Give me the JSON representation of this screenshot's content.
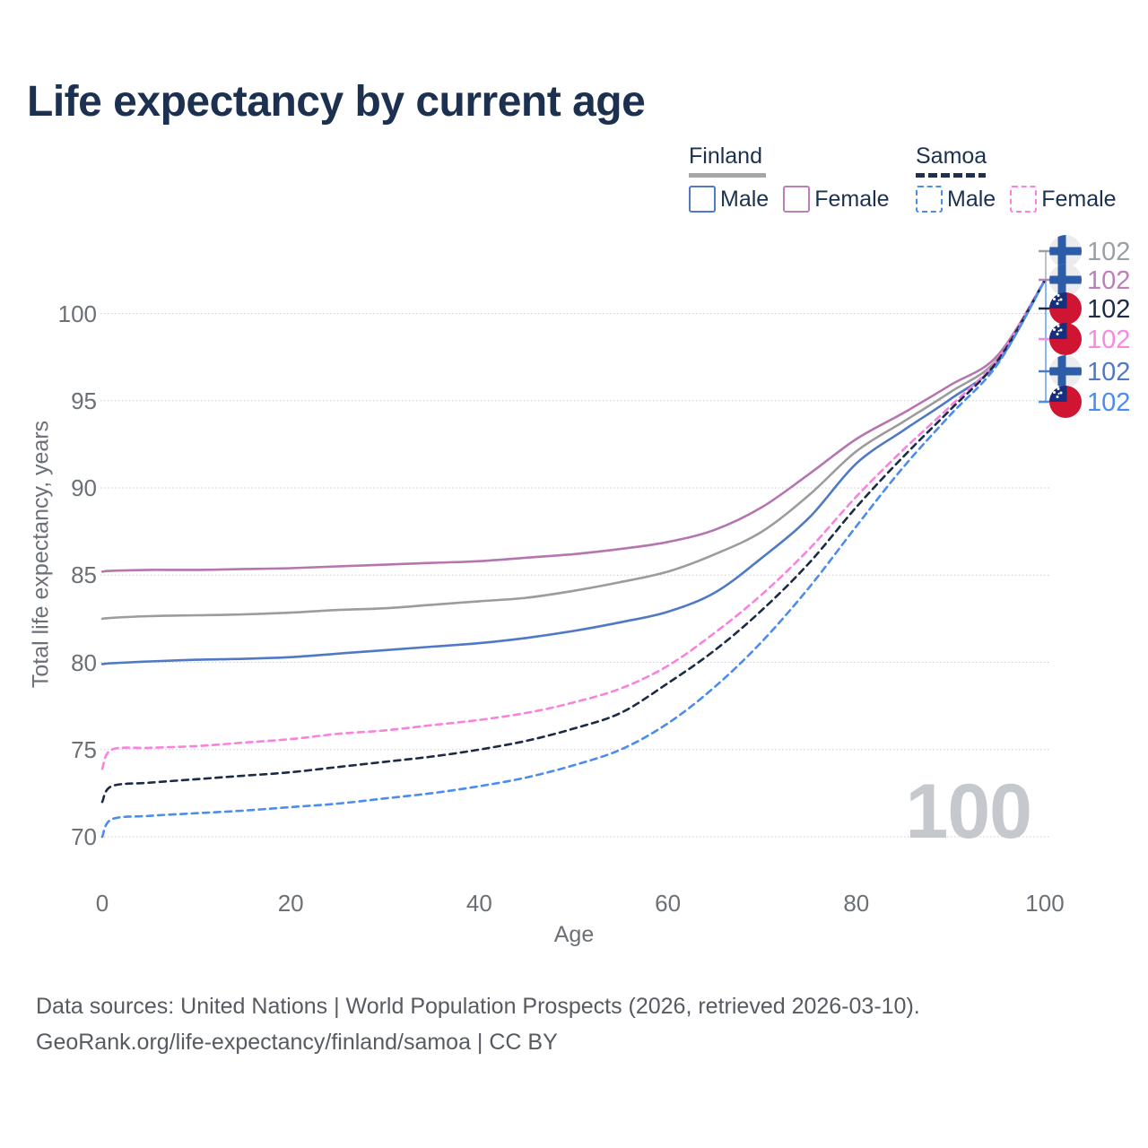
{
  "title": "Life expectancy by current age",
  "legend": {
    "groups": [
      {
        "id": "finland",
        "label": "Finland",
        "line_style": "solid",
        "line_color": "#9c9c9c",
        "items": [
          {
            "id": "finland_male",
            "label": "Male",
            "color": "#4f79c4",
            "dashed": false
          },
          {
            "id": "finland_female",
            "label": "Female",
            "color": "#bb7fba",
            "dashed": false
          }
        ]
      },
      {
        "id": "samoa",
        "label": "Samoa",
        "line_style": "dashed",
        "line_color": "#1c3150",
        "items": [
          {
            "id": "samoa_male",
            "label": "Male",
            "color": "#4b8cf0",
            "dashed": true
          },
          {
            "id": "samoa_female",
            "label": "Female",
            "color": "#fa82dd",
            "dashed": true
          }
        ]
      }
    ]
  },
  "chart_data": {
    "type": "line",
    "title": "Life expectancy by current age",
    "xlabel": "Age",
    "ylabel": "Total life expectancy, years",
    "xlim": [
      0,
      100
    ],
    "ylim": [
      68,
      103
    ],
    "x_ticks": [
      0,
      20,
      40,
      60,
      80,
      100
    ],
    "y_ticks": [
      70,
      75,
      80,
      85,
      90,
      95,
      100
    ],
    "grid": "horizontal",
    "legend_position": "top-right",
    "age_counter": "100",
    "x": [
      0,
      1,
      5,
      10,
      15,
      20,
      25,
      30,
      35,
      40,
      45,
      50,
      55,
      60,
      65,
      70,
      75,
      80,
      85,
      90,
      95,
      100
    ],
    "series": [
      {
        "id": "finland_female",
        "name": "Finland Female",
        "country": "Finland",
        "sex": "Female",
        "color": "#b575af",
        "dashed": false,
        "values": [
          85.2,
          85.25,
          85.3,
          85.3,
          85.35,
          85.4,
          85.5,
          85.6,
          85.7,
          85.8,
          86.0,
          86.2,
          86.5,
          86.9,
          87.6,
          88.9,
          90.8,
          92.8,
          94.3,
          95.9,
          97.6,
          101.9
        ]
      },
      {
        "id": "finland_total",
        "name": "Finland Total",
        "country": "Finland",
        "sex": "Both",
        "color": "#9c9c9c",
        "dashed": false,
        "values": [
          82.5,
          82.55,
          82.65,
          82.7,
          82.75,
          82.85,
          83.0,
          83.1,
          83.3,
          83.5,
          83.7,
          84.1,
          84.6,
          85.2,
          86.2,
          87.5,
          89.6,
          92.1,
          93.8,
          95.5,
          97.4,
          101.9
        ]
      },
      {
        "id": "finland_male",
        "name": "Finland Male",
        "country": "Finland",
        "sex": "Male",
        "color": "#4f79c4",
        "dashed": false,
        "values": [
          79.9,
          79.95,
          80.05,
          80.15,
          80.2,
          80.3,
          80.5,
          80.7,
          80.9,
          81.1,
          81.4,
          81.8,
          82.3,
          82.9,
          84.0,
          86.0,
          88.3,
          91.4,
          93.3,
          95.1,
          97.2,
          101.9
        ]
      },
      {
        "id": "samoa_female",
        "name": "Samoa Female",
        "country": "Samoa",
        "sex": "Female",
        "color": "#fa82dd",
        "dashed": true,
        "values": [
          73.9,
          75.0,
          75.1,
          75.2,
          75.4,
          75.6,
          75.9,
          76.1,
          76.4,
          76.7,
          77.1,
          77.7,
          78.5,
          79.8,
          81.7,
          83.9,
          86.5,
          89.5,
          92.2,
          94.7,
          97.4,
          101.9
        ]
      },
      {
        "id": "samoa_total",
        "name": "Samoa Total",
        "country": "Samoa",
        "sex": "Both",
        "color": "#1c2b45",
        "dashed": true,
        "values": [
          72.0,
          72.9,
          73.1,
          73.3,
          73.5,
          73.7,
          74.0,
          74.3,
          74.6,
          75.0,
          75.5,
          76.2,
          77.1,
          78.8,
          80.7,
          83.0,
          85.7,
          88.9,
          91.8,
          94.5,
          97.3,
          101.9
        ]
      },
      {
        "id": "samoa_male",
        "name": "Samoa Male",
        "country": "Samoa",
        "sex": "Male",
        "color": "#4b8cf0",
        "dashed": true,
        "values": [
          70.0,
          71.0,
          71.2,
          71.35,
          71.5,
          71.7,
          71.9,
          72.2,
          72.5,
          72.9,
          73.4,
          74.1,
          75.0,
          76.5,
          78.6,
          81.2,
          84.3,
          87.8,
          91.2,
          94.2,
          97.1,
          101.9
        ]
      }
    ]
  },
  "end_labels": {
    "rows": [
      {
        "series": "finland_total",
        "flag": "finland",
        "value": "102",
        "color": "#9aa0a6"
      },
      {
        "series": "finland_female",
        "flag": "finland",
        "value": "102",
        "color": "#bb7fba"
      },
      {
        "series": "samoa_total",
        "flag": "samoa",
        "value": "102",
        "color": "#1b2c47"
      },
      {
        "series": "samoa_female",
        "flag": "samoa",
        "value": "102",
        "color": "#f988e1"
      },
      {
        "series": "finland_male",
        "flag": "finland",
        "value": "102",
        "color": "#4f79c4"
      },
      {
        "series": "samoa_male",
        "flag": "samoa",
        "value": "102",
        "color": "#4b8cf0"
      }
    ]
  },
  "footer": {
    "line1": "Data sources: United Nations | World Population Prospects (2026, retrieved 2026-03-10).",
    "line2": "GeoRank.org/life-expectancy/finland/samoa | CC BY"
  }
}
